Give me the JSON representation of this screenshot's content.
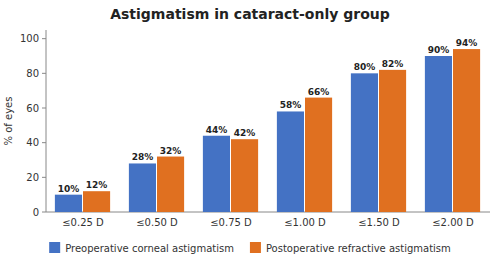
{
  "chart_data": {
    "type": "bar",
    "title": "Astigmatism in cataract-only group",
    "categories": [
      "≤0.25 D",
      "≤0.50 D",
      "≤0.75 D",
      "≤1.00 D",
      "≤1.50 D",
      "≤2.00 D"
    ],
    "series": [
      {
        "name": "Preoperative corneal astigmatism",
        "color": "#4472C4",
        "values": [
          10,
          28,
          44,
          58,
          80,
          90
        ],
        "value_labels": [
          "10%",
          "28%",
          "44%",
          "58%",
          "80%",
          "90%"
        ]
      },
      {
        "name": "Postoperative refractive astigmatism",
        "color": "#E07020",
        "values": [
          12,
          32,
          42,
          66,
          82,
          94
        ],
        "value_labels": [
          "12%",
          "32%",
          "42%",
          "66%",
          "82%",
          "94%"
        ]
      }
    ],
    "ylabel": "% of eyes",
    "ylim": [
      0,
      105
    ],
    "yticks": [
      0,
      20,
      40,
      60,
      80,
      100
    ],
    "data_labels": true,
    "grid": false,
    "legend": "bottom"
  }
}
